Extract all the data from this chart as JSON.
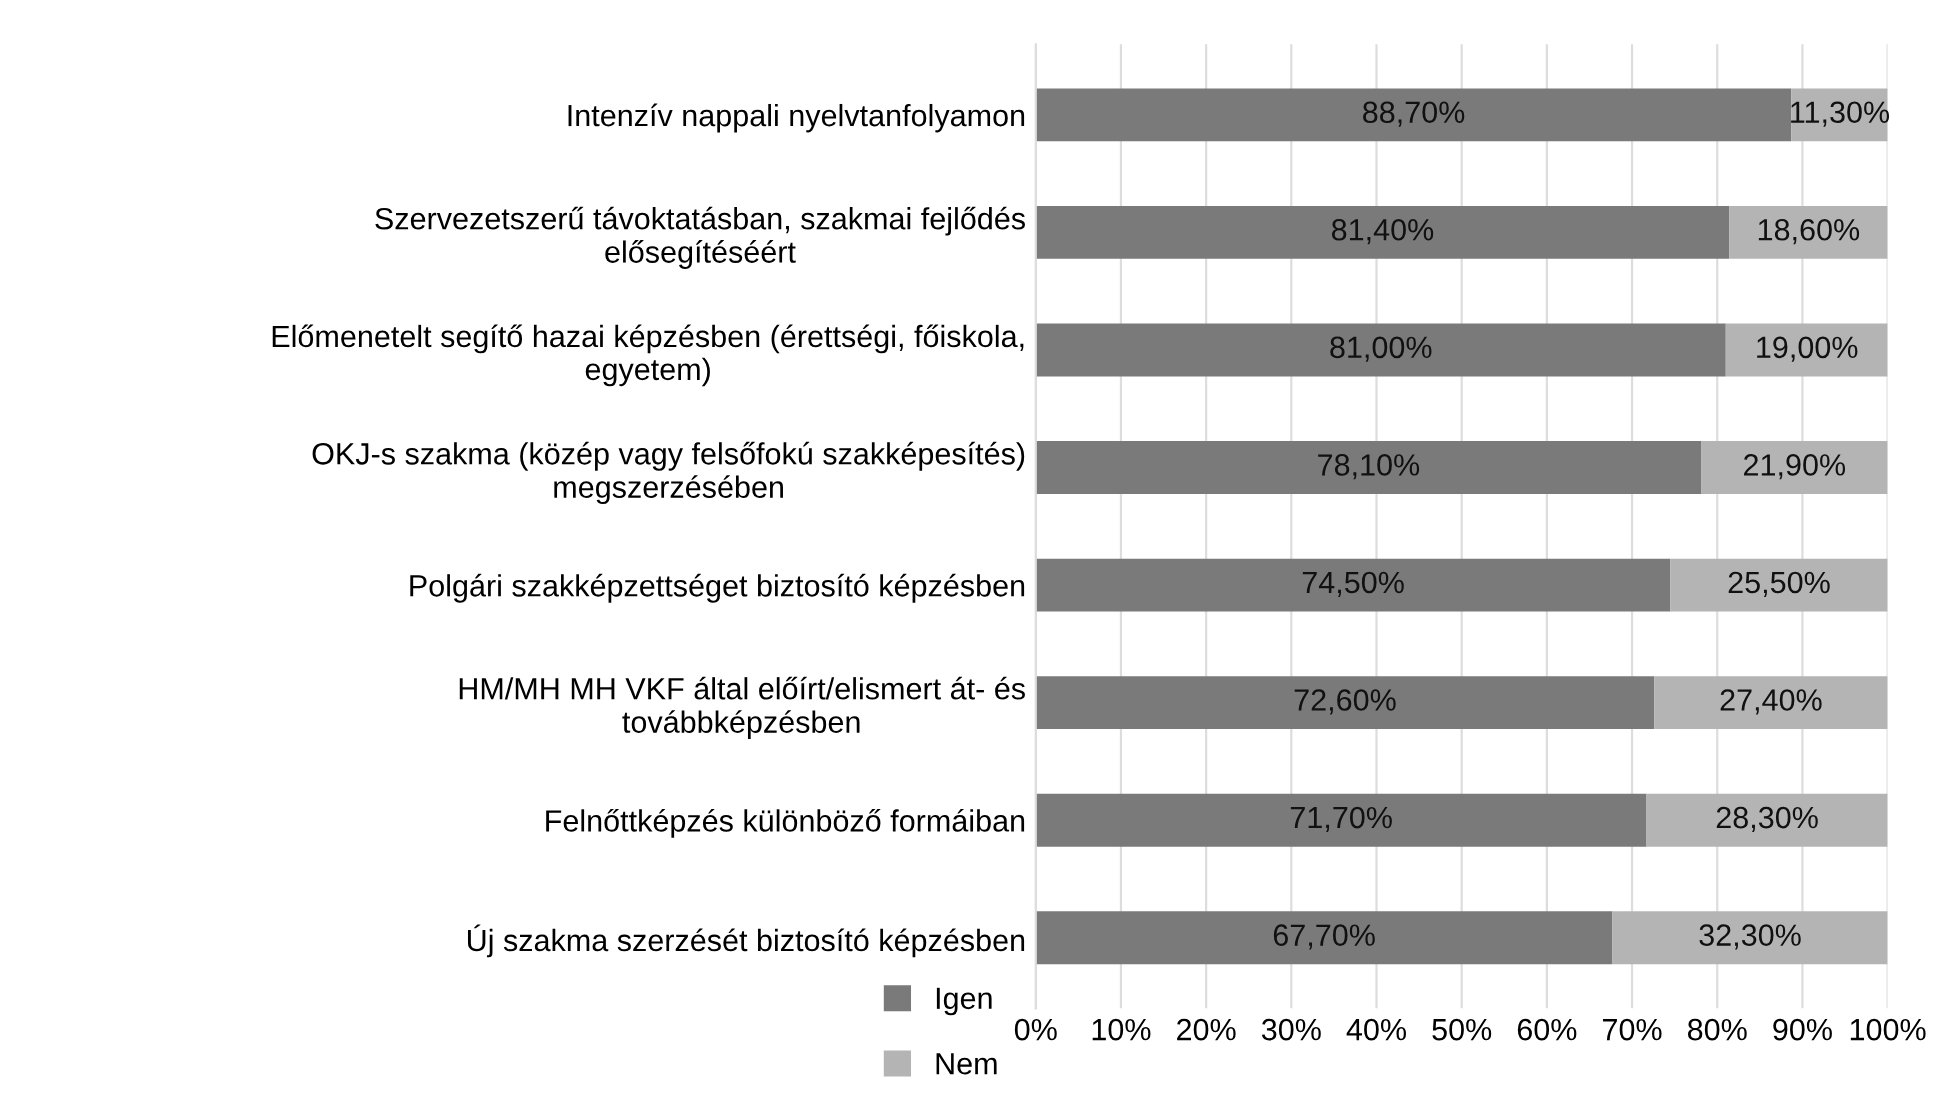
{
  "chart_data": {
    "type": "bar",
    "orientation": "horizontal",
    "stacked": true,
    "categories": [
      "Intenzív nappali nyelvtanfolyamon",
      "Szervezetszerű távoktatásban, szakmai fejlődés\nelősegítéséért",
      "Előmenetelt segítő hazai képzésben (érettségi, főiskola,\negyetem)",
      "OKJ-s szakma (közép vagy felsőfokú szakképesítés)\nmegszerzésében",
      "Polgári szakképzettséget biztosító képzésben",
      "HM/MH MH VKF által előírt/elismert át- és\ntovábbképzésben",
      "Felnőttképzés különböző formáiban",
      "Új szakma szerzését biztosító képzésben"
    ],
    "series": [
      {
        "name": "Igen",
        "color": "#7a7a7a",
        "values": [
          88.7,
          81.4,
          81.0,
          78.1,
          74.5,
          72.6,
          71.7,
          67.7
        ],
        "value_labels": [
          "88,70%",
          "81,40%",
          "81,00%",
          "78,10%",
          "74,50%",
          "72,60%",
          "71,70%",
          "67,70%"
        ]
      },
      {
        "name": "Nem",
        "color": "#b4b4b4",
        "values": [
          11.3,
          18.6,
          19.0,
          21.9,
          25.5,
          27.4,
          28.3,
          32.3
        ],
        "value_labels": [
          "11,30%",
          "18,60%",
          "19,00%",
          "21,90%",
          "25,50%",
          "27,40%",
          "28,30%",
          "32,30%"
        ]
      }
    ],
    "xlim": [
      0,
      100
    ],
    "xticks": [
      {
        "value": 0,
        "label": "0%"
      },
      {
        "value": 10,
        "label": "10%"
      },
      {
        "value": 20,
        "label": "20%"
      },
      {
        "value": 30,
        "label": "30%"
      },
      {
        "value": 40,
        "label": "40%"
      },
      {
        "value": 50,
        "label": "50%"
      },
      {
        "value": 60,
        "label": "60%"
      },
      {
        "value": 70,
        "label": "70%"
      },
      {
        "value": 80,
        "label": "80%"
      },
      {
        "value": 90,
        "label": "90%"
      },
      {
        "value": 100,
        "label": "100%"
      }
    ],
    "grid": "x",
    "legend": "bottom left"
  }
}
